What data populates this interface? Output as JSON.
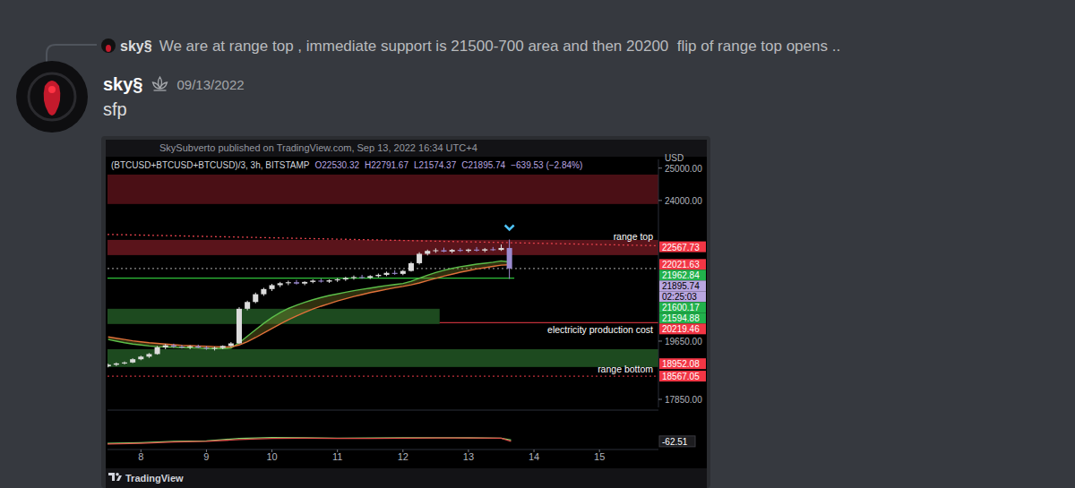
{
  "reply": {
    "author": "sky§",
    "text": "We are at range top , immediate support is 21500-700 area and then 20200  flip of range top opens .."
  },
  "message": {
    "author": "sky§",
    "timestamp": "09/13/2022",
    "text": "sfp"
  },
  "chart_data": {
    "type": "candlestick",
    "subtitle": "SkySubverto published on TradingView.com, Sep 13, 2022 16:34 UTC+4",
    "title": "(BTCUSD+BTCUSD+BTCUSD)/3, 3h, BITSTAMP",
    "ohlc_legend": [
      "O22530.32",
      "H22791.67",
      "L21574.37",
      "C21895.74",
      "−639.53 (−2.84%)"
    ],
    "axis_unit": "USD",
    "footer": "TradingView",
    "grid": false,
    "x": [
      7.5,
      7.625,
      7.75,
      7.875,
      8,
      8.125,
      8.25,
      8.375,
      8.5,
      8.625,
      8.75,
      8.875,
      9,
      9.125,
      9.25,
      9.375,
      9.5,
      9.625,
      9.75,
      9.875,
      10,
      10.125,
      10.25,
      10.375,
      10.5,
      10.625,
      10.75,
      10.875,
      11,
      11.125,
      11.25,
      11.375,
      11.5,
      11.625,
      11.75,
      11.875,
      12,
      12.125,
      12.25,
      12.375,
      12.5,
      12.625,
      12.75,
      12.875,
      13,
      13.125,
      13.25,
      13.375,
      13.5,
      13.625
    ],
    "xlim": [
      7.49,
      15.9
    ],
    "xticks": [
      8,
      9,
      10,
      11,
      12,
      13,
      14,
      15
    ],
    "ylim": [
      17600,
      25270
    ],
    "yticks": [
      {
        "value": 17850,
        "label": "17850.00"
      },
      {
        "value": 19650,
        "label": "19650.00"
      },
      {
        "value": 24000,
        "label": "24000.00"
      },
      {
        "value": 25000,
        "label": "25000.00"
      }
    ],
    "series": [
      {
        "type": "candlestick",
        "open": [
          18870,
          18920,
          18960,
          18990,
          19090,
          19170,
          19250,
          19460,
          19520,
          19480,
          19460,
          19490,
          19450,
          19420,
          19440,
          19500,
          19580,
          20650,
          20860,
          21100,
          21260,
          21380,
          21440,
          21470,
          21430,
          21480,
          21520,
          21490,
          21530,
          21560,
          21600,
          21630,
          21610,
          21660,
          21700,
          21760,
          21730,
          21820,
          22060,
          22350,
          22440,
          22460,
          22420,
          22470,
          22440,
          22480,
          22450,
          22490,
          22470,
          22530.32
        ],
        "high": [
          18950,
          18990,
          19020,
          19120,
          19200,
          19280,
          19500,
          19560,
          19570,
          19530,
          19520,
          19540,
          19500,
          19480,
          19520,
          19620,
          20700,
          20900,
          21150,
          21300,
          21420,
          21480,
          21520,
          21540,
          21500,
          21560,
          21580,
          21560,
          21600,
          21640,
          21680,
          21700,
          21690,
          21740,
          21800,
          21840,
          21850,
          22100,
          22400,
          22480,
          22520,
          22540,
          22500,
          22530,
          22510,
          22560,
          22530,
          22560,
          22640,
          22791.67
        ],
        "low": [
          18840,
          18880,
          18930,
          18970,
          19060,
          19130,
          19230,
          19400,
          19440,
          19420,
          19400,
          19430,
          19380,
          19360,
          19400,
          19470,
          19560,
          20600,
          20820,
          21050,
          21200,
          21320,
          21380,
          21400,
          21380,
          21440,
          21460,
          21450,
          21480,
          21510,
          21550,
          21580,
          21570,
          21620,
          21660,
          21700,
          21690,
          21800,
          22020,
          22300,
          22380,
          22400,
          22370,
          22410,
          22390,
          22420,
          22400,
          22440,
          22440,
          21574.37
        ],
        "close": [
          18920,
          18960,
          18990,
          19090,
          19170,
          19250,
          19460,
          19520,
          19480,
          19460,
          19490,
          19450,
          19420,
          19440,
          19500,
          19580,
          20650,
          20860,
          21100,
          21260,
          21380,
          21440,
          21470,
          21430,
          21480,
          21520,
          21490,
          21530,
          21560,
          21600,
          21630,
          21610,
          21660,
          21700,
          21760,
          21730,
          21820,
          22060,
          22350,
          22440,
          22460,
          22420,
          22470,
          22440,
          22480,
          22450,
          22490,
          22470,
          22530,
          21895.74
        ]
      },
      {
        "type": "line",
        "color": "#5cbf4a",
        "values": [
          19700,
          19650,
          19600,
          19560,
          19530,
          19500,
          19480,
          19470,
          19460,
          19450,
          19440,
          19430,
          19420,
          19420,
          19420,
          19430,
          19600,
          19800,
          20000,
          20200,
          20380,
          20530,
          20660,
          20760,
          20850,
          20930,
          21000,
          21060,
          21110,
          21160,
          21210,
          21250,
          21290,
          21330,
          21370,
          21400,
          21430,
          21500,
          21600,
          21690,
          21770,
          21840,
          21900,
          21950,
          21990,
          22030,
          22060,
          22090,
          22130,
          22100
        ]
      },
      {
        "type": "line",
        "color": "#e0703a",
        "values": [
          19780,
          19740,
          19700,
          19660,
          19630,
          19600,
          19580,
          19560,
          19540,
          19520,
          19510,
          19500,
          19490,
          19480,
          19470,
          19470,
          19530,
          19630,
          19760,
          19900,
          20040,
          20180,
          20310,
          20430,
          20540,
          20640,
          20730,
          20810,
          20890,
          20960,
          21030,
          21090,
          21150,
          21200,
          21250,
          21300,
          21340,
          21390,
          21450,
          21520,
          21590,
          21660,
          21720,
          21780,
          21830,
          21880,
          21920,
          21960,
          22000,
          22010
        ]
      }
    ],
    "zones": [
      {
        "from": 23890,
        "to": 24800,
        "color": "#4a0f15"
      },
      {
        "from": 22310,
        "to": 22780,
        "color": "#5a141b"
      },
      {
        "from": 20180,
        "to": 20650,
        "x_to": 12.56,
        "color": "#1d4a1f"
      },
      {
        "from": 18850,
        "to": 19400,
        "color": "#1d4a1f"
      }
    ],
    "levels": [
      {
        "value": 21895.74,
        "color": "#8a8a8a",
        "line_style": "dotted"
      },
      {
        "value": 21600.17,
        "x_to": 13.7,
        "color": "#2fbf3a",
        "line_style": "solid"
      },
      {
        "value": 20219.46,
        "x_from": 12.56,
        "color": "#c0303a",
        "line_style": "solid"
      },
      {
        "value": 18567.05,
        "color": "#c0303a",
        "line_style": "dotted"
      }
    ],
    "trendline": {
      "x": [
        7.49,
        15.9
      ],
      "y": [
        22950,
        22600
      ],
      "color": "#e0404a",
      "line_style": "dotted"
    },
    "annotations": [
      {
        "text": "range top",
        "value": 22900
      },
      {
        "text": "electricity production cost",
        "value": 20020
      },
      {
        "text": "range bottom",
        "value": 18790
      }
    ],
    "price_tags": [
      {
        "value": 22567.73,
        "color": "#f23645"
      },
      {
        "value": 22021.63,
        "color": "#f23645"
      },
      {
        "value": 21962.84,
        "color": "#22b24c"
      },
      {
        "value": 21895.74,
        "color": "#b9a6e0",
        "countdown": "02:25:03"
      },
      {
        "value": 21600.17,
        "color": "#22b24c"
      },
      {
        "value": 21594.88,
        "color": "#22b24c"
      },
      {
        "value": 20219.46,
        "color": "#f23645"
      },
      {
        "value": 18952.08,
        "color": "#f23645"
      },
      {
        "value": 18567.05,
        "color": "#f23645"
      }
    ],
    "indicator": {
      "x": [
        7.49,
        8,
        8.5,
        9,
        9.5,
        10,
        10.5,
        11,
        11.5,
        12,
        12.5,
        13,
        13.5,
        13.65
      ],
      "ylim": [
        -100,
        100
      ],
      "series": [
        {
          "color": "#7cd36b",
          "values": [
            -75,
            -70,
            -62,
            -60,
            -45,
            -40,
            -42,
            -44,
            -43,
            -42,
            -41,
            -42,
            -44,
            -55
          ]
        },
        {
          "color": "#e0504a",
          "values": [
            -78,
            -74,
            -66,
            -63,
            -52,
            -45,
            -44,
            -45,
            -45,
            -44,
            -43,
            -43,
            -44,
            -62.51
          ]
        }
      ]
    }
  }
}
